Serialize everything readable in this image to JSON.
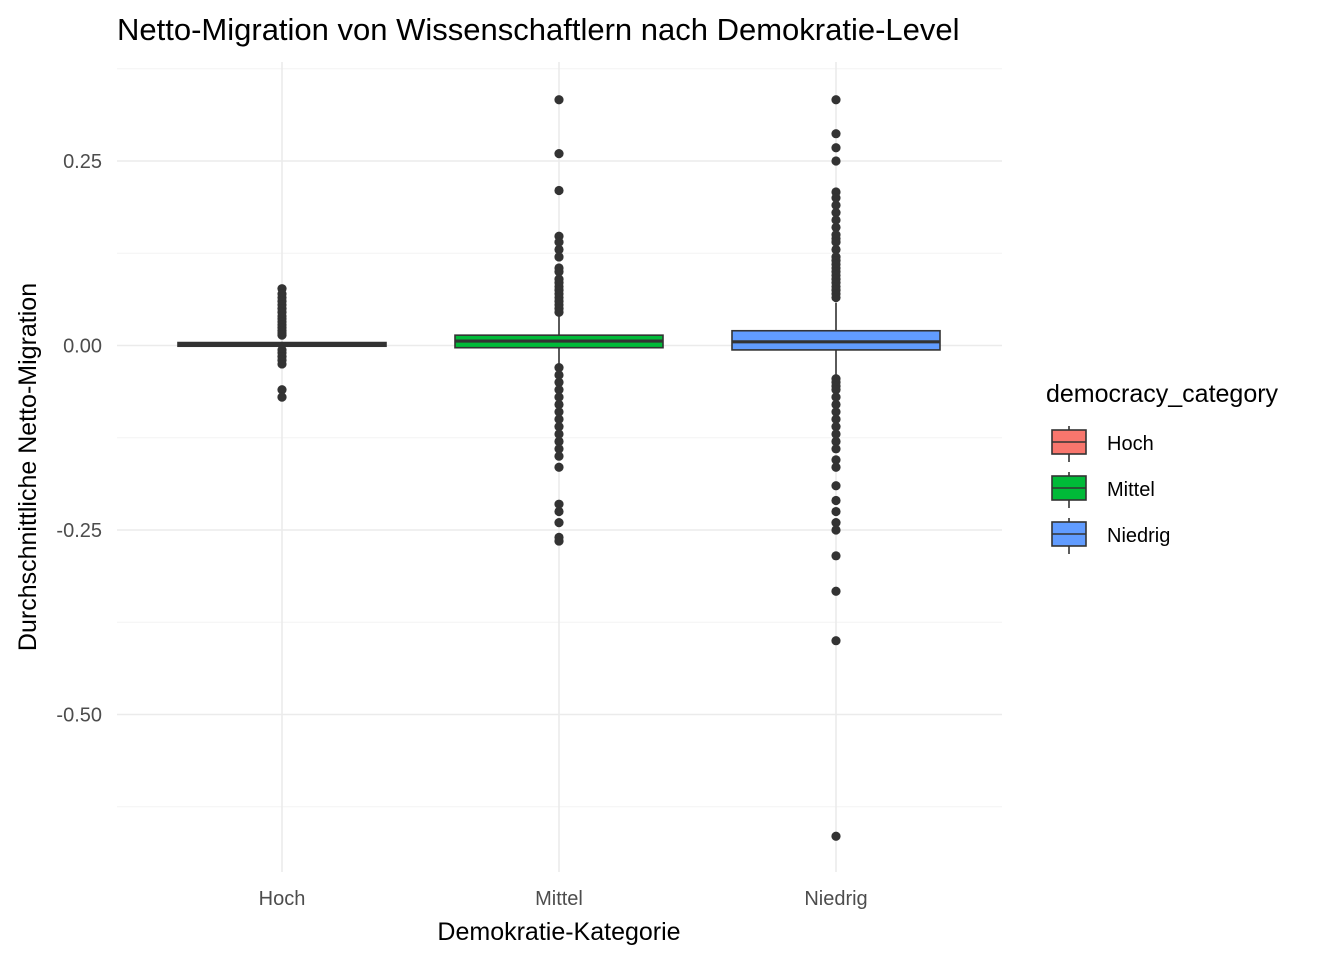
{
  "chart_data": {
    "type": "boxplot",
    "title": "Netto-Migration von Wissenschaftlern nach Demokratie-Level",
    "xlabel": "Demokratie-Kategorie",
    "ylabel": "Durchschnittliche Netto-Migration",
    "ylim": [
      -0.7,
      0.38
    ],
    "y_ticks": [
      0.25,
      0.0,
      -0.25,
      -0.5
    ],
    "y_tick_labels": [
      "0.25",
      "0.00",
      "-0.25",
      "-0.50"
    ],
    "categories": [
      "Hoch",
      "Mittel",
      "Niedrig"
    ],
    "legend": {
      "title": "democracy_category",
      "placement": "right",
      "entries": [
        {
          "label": "Hoch",
          "color": "#F8766D"
        },
        {
          "label": "Mittel",
          "color": "#00BA38"
        },
        {
          "label": "Niedrig",
          "color": "#619CFF"
        }
      ]
    },
    "grid": true,
    "boxes": [
      {
        "category": "Hoch",
        "color": "#F8766D",
        "q1": -0.001,
        "median": 0.002,
        "q3": 0.004,
        "whisker_low": -0.002,
        "whisker_high": 0.005,
        "outliers": [
          0.077,
          0.07,
          0.065,
          0.06,
          0.055,
          0.05,
          0.045,
          0.04,
          0.036,
          0.032,
          0.028,
          0.024,
          0.02,
          0.017,
          0.014,
          -0.006,
          -0.01,
          -0.015,
          -0.02,
          -0.025,
          -0.06,
          -0.07
        ]
      },
      {
        "category": "Mittel",
        "color": "#00BA38",
        "q1": -0.003,
        "median": 0.006,
        "q3": 0.014,
        "whisker_low": -0.028,
        "whisker_high": 0.04,
        "outliers": [
          0.333,
          0.26,
          0.21,
          0.148,
          0.14,
          0.13,
          0.12,
          0.105,
          0.1,
          0.09,
          0.085,
          0.08,
          0.075,
          0.07,
          0.065,
          0.06,
          0.055,
          0.05,
          0.045,
          -0.03,
          -0.04,
          -0.05,
          -0.06,
          -0.07,
          -0.08,
          -0.09,
          -0.1,
          -0.11,
          -0.12,
          -0.13,
          -0.14,
          -0.15,
          -0.165,
          -0.215,
          -0.225,
          -0.24,
          -0.26,
          -0.265
        ]
      },
      {
        "category": "Niedrig",
        "color": "#619CFF",
        "q1": -0.006,
        "median": 0.005,
        "q3": 0.02,
        "whisker_low": -0.042,
        "whisker_high": 0.058,
        "outliers": [
          0.333,
          0.287,
          0.268,
          0.25,
          0.208,
          0.2,
          0.19,
          0.18,
          0.17,
          0.16,
          0.15,
          0.145,
          0.14,
          0.13,
          0.12,
          0.115,
          0.11,
          0.105,
          0.1,
          0.095,
          0.09,
          0.085,
          0.08,
          0.075,
          0.07,
          0.065,
          -0.045,
          -0.05,
          -0.055,
          -0.06,
          -0.07,
          -0.08,
          -0.09,
          -0.1,
          -0.11,
          -0.12,
          -0.13,
          -0.14,
          -0.155,
          -0.165,
          -0.19,
          -0.21,
          -0.225,
          -0.24,
          -0.25,
          -0.285,
          -0.333,
          -0.4,
          -0.665
        ]
      }
    ]
  }
}
